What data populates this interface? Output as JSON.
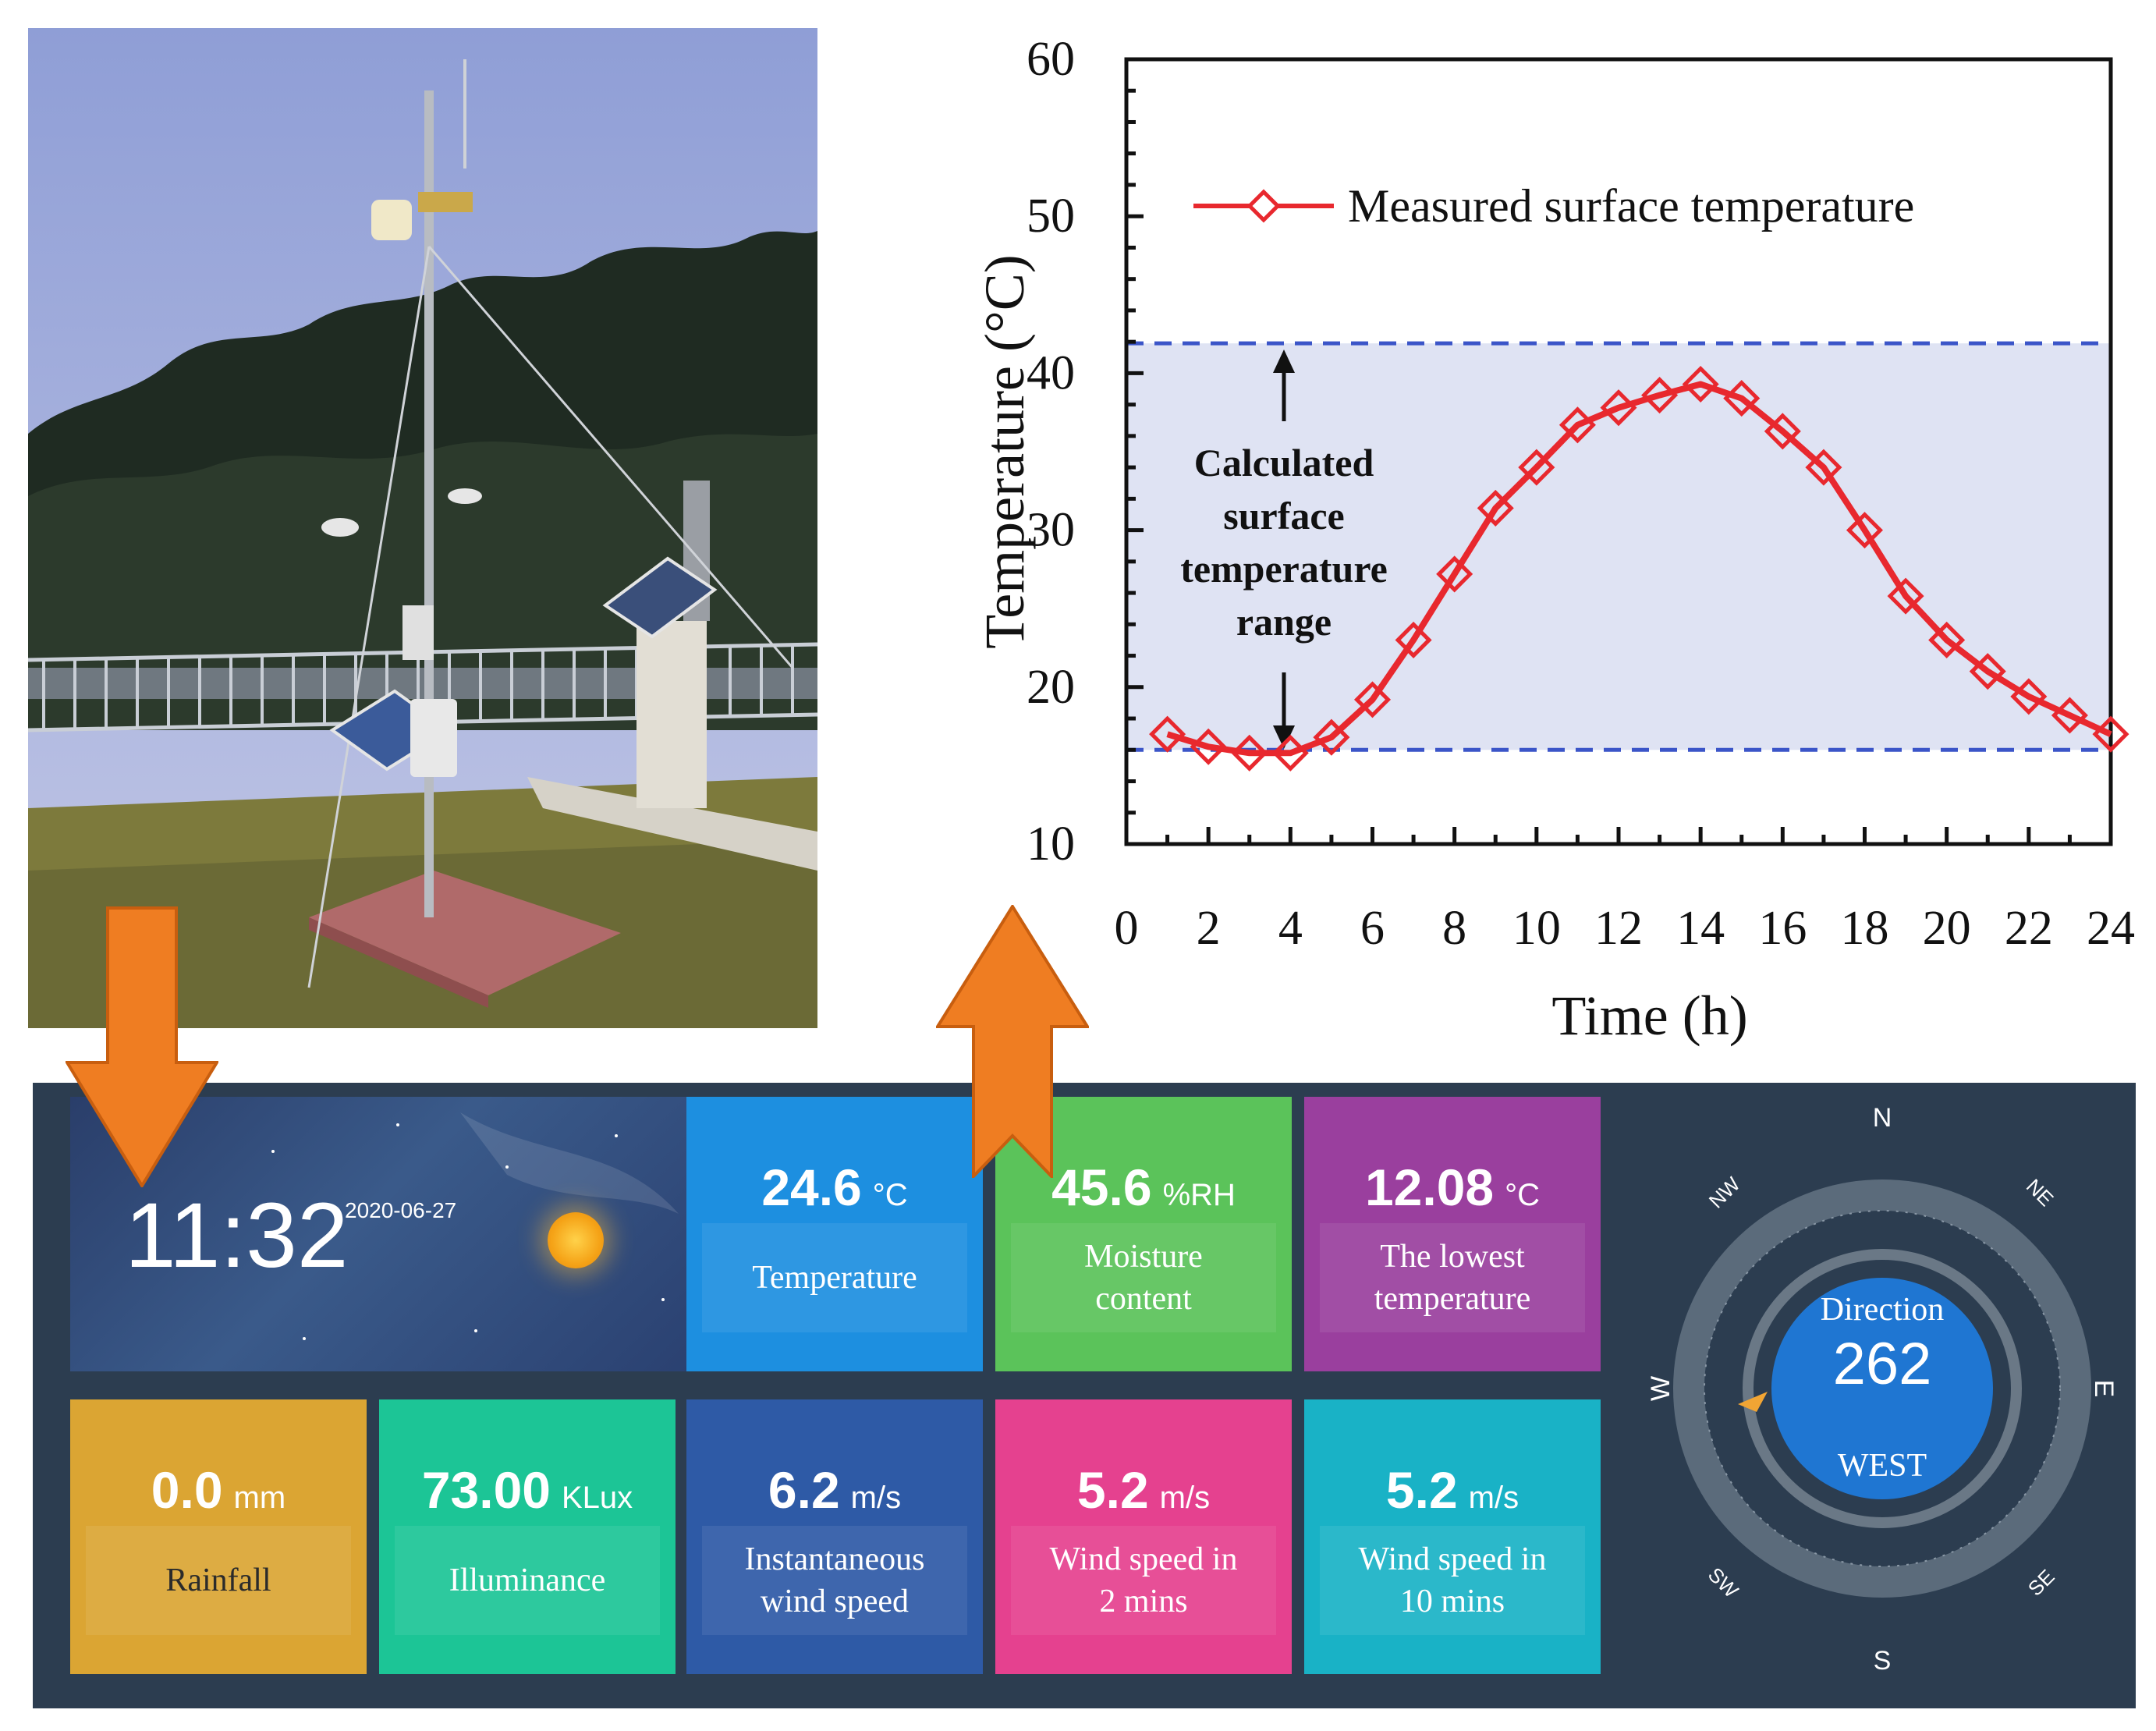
{
  "chart_data": {
    "type": "line",
    "x": [
      1,
      2,
      3,
      4,
      5,
      6,
      7,
      8,
      9,
      10,
      11,
      12,
      13,
      14,
      15,
      16,
      17,
      18,
      19,
      20,
      21,
      22,
      23,
      24
    ],
    "series": [
      {
        "name": "Measured surface temperature",
        "values": [
          17.0,
          16.2,
          15.8,
          15.8,
          16.8,
          19.2,
          23.0,
          27.2,
          31.4,
          34.0,
          36.7,
          37.8,
          38.6,
          39.3,
          38.4,
          36.3,
          34.0,
          30.0,
          25.8,
          23.0,
          21.0,
          19.4,
          18.2,
          17.0
        ],
        "color": "#e8282e"
      }
    ],
    "band": {
      "low": 16.0,
      "high": 41.9,
      "color": "#dfe3f3",
      "line_color": "#3b55c8"
    },
    "annotation": [
      "Calculated",
      "surface",
      "temperature",
      "range"
    ],
    "xlabel": "Time (h)",
    "ylabel": "Temperature (°C)",
    "xlim": [
      0,
      24
    ],
    "ylim": [
      10,
      60
    ],
    "xticks": [
      "0",
      "2",
      "4",
      "6",
      "8",
      "10",
      "12",
      "14",
      "16",
      "18",
      "20",
      "22",
      "24"
    ],
    "yticks": [
      "10",
      "20",
      "30",
      "40",
      "50",
      "60"
    ],
    "legend": "top-left"
  },
  "dashboard": {
    "clock": {
      "time": "11:32",
      "date": "2020-06-27"
    },
    "tiles": [
      {
        "value": "24.6",
        "unit": "°C",
        "label": "Temperature",
        "color": "#1d8fe0"
      },
      {
        "value": "45.6",
        "unit": "%RH",
        "label": "Moisture content",
        "color": "#5bc35a"
      },
      {
        "value": "12.08",
        "unit": "°C",
        "label": "The lowest temperature",
        "color": "#9a3f9e"
      },
      {
        "value": "0.0",
        "unit": "mm",
        "label": "Rainfall",
        "color": "#dba533"
      },
      {
        "value": "73.00",
        "unit": "KLux",
        "label": "Illuminance",
        "color": "#1cc596"
      },
      {
        "value": "6.2",
        "unit": "m/s",
        "label": "Instantaneous wind speed",
        "color": "#2e5aa6"
      },
      {
        "value": "5.2",
        "unit": "m/s",
        "label": "Wind speed in 2 mins",
        "color": "#e5418f"
      },
      {
        "value": "5.2",
        "unit": "m/s",
        "label": "Wind speed in 10 mins",
        "color": "#19b2c6"
      }
    ],
    "compass": {
      "title": "Direction",
      "degrees": "262",
      "direction": "WEST",
      "n": "N",
      "s": "S",
      "e": "E",
      "w": "W",
      "ne": "NE",
      "nw": "NW",
      "se": "SE",
      "sw": "SW"
    }
  },
  "colors": {
    "arrow": "#ef7d22",
    "arrow_edge": "#c85e0f",
    "panel": "#2c3d50"
  }
}
